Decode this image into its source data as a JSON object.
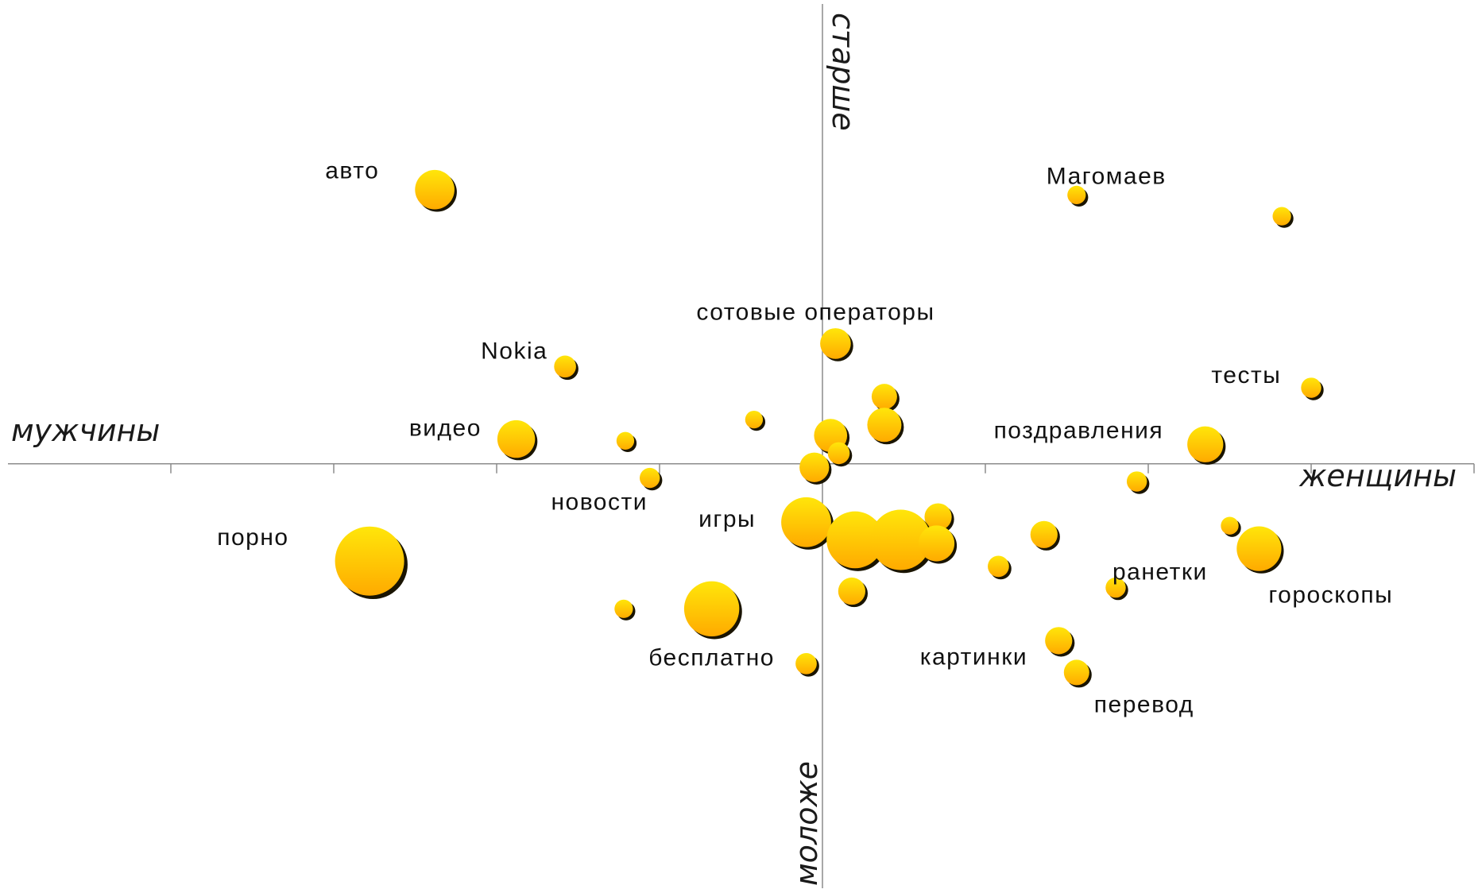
{
  "chart_data": {
    "type": "scatter",
    "title": "",
    "xlabel_left": "мужчины",
    "xlabel_right": "женщины",
    "ylabel_top": "старше",
    "ylabel_bottom": "моложе",
    "xlim": [
      -5,
      4
    ],
    "ylim": [
      -2.4,
      2.6
    ],
    "x_ticks": [
      -4,
      -3,
      -2,
      -1,
      1,
      2,
      3,
      4
    ],
    "grid": false,
    "bubble_colors": {
      "top": "#ffe60a",
      "bottom": "#ffaa00",
      "shadow": "#1a1400"
    },
    "points": [
      {
        "label": "авто",
        "x": -2.38,
        "y": 1.55,
        "size": 0.9
      },
      {
        "label": "Магомаев",
        "x": 1.56,
        "y": 1.52,
        "size": 0.3
      },
      {
        "label": "",
        "x": 2.82,
        "y": 1.4,
        "size": 0.3
      },
      {
        "label": "сотовые операторы",
        "x": 0.08,
        "y": 0.68,
        "size": 0.65
      },
      {
        "label": "Nokia",
        "x": -1.58,
        "y": 0.55,
        "size": 0.4
      },
      {
        "label": "тесты",
        "x": 3.0,
        "y": 0.43,
        "size": 0.35
      },
      {
        "label": "",
        "x": 0.38,
        "y": 0.38,
        "size": 0.5
      },
      {
        "label": "",
        "x": -0.42,
        "y": 0.25,
        "size": 0.28
      },
      {
        "label": "",
        "x": 0.38,
        "y": 0.22,
        "size": 0.75
      },
      {
        "label": "",
        "x": 0.05,
        "y": 0.16,
        "size": 0.72
      },
      {
        "label": "видео",
        "x": -1.88,
        "y": 0.14,
        "size": 0.85
      },
      {
        "label": "",
        "x": -1.21,
        "y": 0.13,
        "size": 0.28
      },
      {
        "label": "поздравления",
        "x": 2.35,
        "y": 0.11,
        "size": 0.8
      },
      {
        "label": "",
        "x": 0.1,
        "y": 0.06,
        "size": 0.4
      },
      {
        "label": "",
        "x": -0.05,
        "y": -0.02,
        "size": 0.62
      },
      {
        "label": "новости",
        "x": -1.06,
        "y": -0.08,
        "size": 0.35
      },
      {
        "label": "",
        "x": 1.93,
        "y": -0.1,
        "size": 0.35
      },
      {
        "label": "игры",
        "x": -0.1,
        "y": -0.33,
        "size": 1.2
      },
      {
        "label": "",
        "x": 0.71,
        "y": -0.3,
        "size": 0.55
      },
      {
        "label": "",
        "x": 2.5,
        "y": -0.35,
        "size": 0.28
      },
      {
        "label": "",
        "x": 0.2,
        "y": -0.43,
        "size": 1.4
      },
      {
        "label": "",
        "x": 0.48,
        "y": -0.43,
        "size": 1.5
      },
      {
        "label": "",
        "x": 0.7,
        "y": -0.45,
        "size": 0.8
      },
      {
        "label": "",
        "x": 1.36,
        "y": -0.4,
        "size": 0.55
      },
      {
        "label": "гороскопы",
        "x": 2.68,
        "y": -0.48,
        "size": 1.05
      },
      {
        "label": "порно",
        "x": -2.78,
        "y": -0.55,
        "size": 1.75
      },
      {
        "label": "",
        "x": 1.08,
        "y": -0.58,
        "size": 0.38
      },
      {
        "label": "ранетки",
        "x": 1.8,
        "y": -0.7,
        "size": 0.35
      },
      {
        "label": "",
        "x": 0.18,
        "y": -0.72,
        "size": 0.55
      },
      {
        "label": "",
        "x": -1.22,
        "y": -0.82,
        "size": 0.3
      },
      {
        "label": "бесплатно",
        "x": -0.68,
        "y": -0.82,
        "size": 1.35
      },
      {
        "label": "картинки",
        "x": 1.45,
        "y": -1.0,
        "size": 0.55
      },
      {
        "label": "",
        "x": -0.1,
        "y": -1.13,
        "size": 0.38
      },
      {
        "label": "перевод",
        "x": 1.56,
        "y": -1.18,
        "size": 0.5
      }
    ]
  }
}
